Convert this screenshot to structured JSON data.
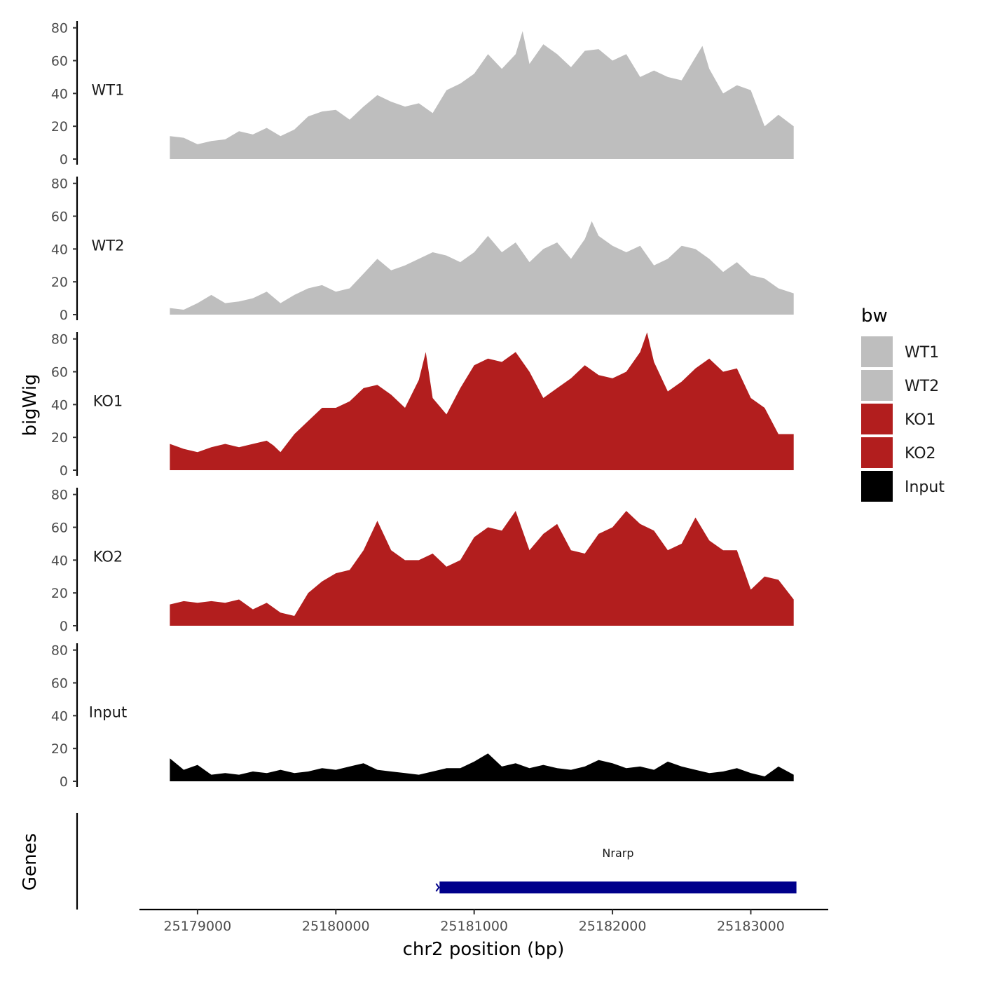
{
  "chart_data": {
    "type": "area",
    "xlabel": "chr2 position (bp)",
    "ylabel": "bigWig",
    "genes_label": "Genes",
    "xlim": [
      25178580,
      25183560
    ],
    "x_ticks": [
      25179000,
      25180000,
      25181000,
      25182000,
      25183000
    ],
    "x_tick_labels": [
      "25179000",
      "25180000",
      "25181000",
      "25182000",
      "25183000"
    ],
    "ylim": [
      0,
      85
    ],
    "y_ticks": [
      0,
      20,
      40,
      60,
      80
    ],
    "y_tick_labels": [
      "0",
      "20",
      "40",
      "60",
      "80"
    ],
    "grid": false,
    "legend": {
      "title": "bw",
      "position": "right",
      "entries": [
        {
          "label": "WT1",
          "color": "#bebebe"
        },
        {
          "label": "WT2",
          "color": "#bebebe"
        },
        {
          "label": "KO1",
          "color": "#b21e1e"
        },
        {
          "label": "KO2",
          "color": "#b21e1e"
        },
        {
          "label": "Input",
          "color": "#000000"
        }
      ]
    },
    "series": [
      {
        "name": "WT1",
        "color": "#bebebe",
        "x": [
          25178800,
          25178900,
          25179000,
          25179100,
          25179200,
          25179300,
          25179400,
          25179500,
          25179600,
          25179700,
          25179800,
          25179900,
          25180000,
          25180100,
          25180200,
          25180300,
          25180400,
          25180500,
          25180600,
          25180700,
          25180800,
          25180900,
          25181000,
          25181100,
          25181200,
          25181300,
          25181350,
          25181400,
          25181500,
          25181600,
          25181700,
          25181800,
          25181900,
          25182000,
          25182100,
          25182200,
          25182300,
          25182400,
          25182500,
          25182600,
          25182650,
          25182700,
          25182800,
          25182900,
          25183000,
          25183100,
          25183200,
          25183310
        ],
        "y": [
          14,
          13,
          9,
          11,
          12,
          17,
          15,
          19,
          14,
          18,
          26,
          29,
          30,
          24,
          32,
          39,
          35,
          32,
          34,
          28,
          42,
          46,
          52,
          64,
          55,
          64,
          78,
          58,
          70,
          64,
          56,
          66,
          67,
          60,
          64,
          50,
          54,
          50,
          48,
          62,
          69,
          55,
          40,
          45,
          42,
          20,
          27,
          20
        ]
      },
      {
        "name": "WT2",
        "color": "#bebebe",
        "x": [
          25178800,
          25178900,
          25179000,
          25179100,
          25179200,
          25179300,
          25179400,
          25179500,
          25179600,
          25179700,
          25179800,
          25179900,
          25180000,
          25180100,
          25180200,
          25180300,
          25180400,
          25180500,
          25180600,
          25180700,
          25180800,
          25180900,
          25181000,
          25181100,
          25181200,
          25181300,
          25181400,
          25181500,
          25181600,
          25181700,
          25181800,
          25181850,
          25181900,
          25182000,
          25182100,
          25182200,
          25182300,
          25182400,
          25182500,
          25182600,
          25182700,
          25182800,
          25182900,
          25183000,
          25183100,
          25183200,
          25183310
        ],
        "y": [
          4,
          3,
          7,
          12,
          7,
          8,
          10,
          14,
          7,
          12,
          16,
          18,
          14,
          16,
          25,
          34,
          27,
          30,
          34,
          38,
          36,
          32,
          38,
          48,
          38,
          44,
          32,
          40,
          44,
          34,
          46,
          57,
          48,
          42,
          38,
          42,
          30,
          34,
          42,
          40,
          34,
          26,
          32,
          24,
          22,
          16,
          13
        ]
      },
      {
        "name": "KO1",
        "color": "#b21e1e",
        "x": [
          25178800,
          25178900,
          25179000,
          25179100,
          25179200,
          25179300,
          25179400,
          25179500,
          25179550,
          25179600,
          25179700,
          25179800,
          25179900,
          25180000,
          25180100,
          25180200,
          25180300,
          25180400,
          25180500,
          25180600,
          25180650,
          25180700,
          25180800,
          25180900,
          25181000,
          25181100,
          25181200,
          25181300,
          25181400,
          25181500,
          25181600,
          25181700,
          25181800,
          25181900,
          25182000,
          25182100,
          25182200,
          25182250,
          25182300,
          25182400,
          25182500,
          25182600,
          25182700,
          25182800,
          25182900,
          25183000,
          25183100,
          25183200,
          25183310
        ],
        "y": [
          16,
          13,
          11,
          14,
          16,
          14,
          16,
          18,
          15,
          11,
          22,
          30,
          38,
          38,
          42,
          50,
          52,
          46,
          38,
          55,
          72,
          44,
          34,
          50,
          64,
          68,
          66,
          72,
          60,
          44,
          50,
          56,
          64,
          58,
          56,
          60,
          72,
          84,
          66,
          48,
          54,
          62,
          68,
          60,
          62,
          44,
          38,
          22,
          22
        ]
      },
      {
        "name": "KO2",
        "color": "#b21e1e",
        "x": [
          25178800,
          25178900,
          25179000,
          25179100,
          25179200,
          25179300,
          25179400,
          25179500,
          25179600,
          25179700,
          25179800,
          25179900,
          25180000,
          25180100,
          25180200,
          25180300,
          25180400,
          25180500,
          25180600,
          25180700,
          25180800,
          25180900,
          25181000,
          25181100,
          25181200,
          25181300,
          25181400,
          25181500,
          25181600,
          25181700,
          25181800,
          25181900,
          25182000,
          25182100,
          25182200,
          25182300,
          25182400,
          25182500,
          25182600,
          25182700,
          25182800,
          25182900,
          25183000,
          25183100,
          25183200,
          25183310
        ],
        "y": [
          13,
          15,
          14,
          15,
          14,
          16,
          10,
          14,
          8,
          6,
          20,
          27,
          32,
          34,
          46,
          64,
          46,
          40,
          40,
          44,
          36,
          40,
          54,
          60,
          58,
          70,
          46,
          56,
          62,
          46,
          44,
          56,
          60,
          70,
          62,
          58,
          46,
          50,
          66,
          52,
          46,
          46,
          22,
          30,
          28,
          16
        ]
      },
      {
        "name": "Input",
        "color": "#000000",
        "x": [
          25178800,
          25178900,
          25179000,
          25179100,
          25179200,
          25179300,
          25179400,
          25179500,
          25179600,
          25179700,
          25179800,
          25179900,
          25180000,
          25180100,
          25180200,
          25180300,
          25180400,
          25180500,
          25180600,
          25180700,
          25180800,
          25180900,
          25181000,
          25181100,
          25181200,
          25181300,
          25181400,
          25181500,
          25181600,
          25181700,
          25181800,
          25181900,
          25182000,
          25182100,
          25182200,
          25182300,
          25182400,
          25182500,
          25182600,
          25182700,
          25182800,
          25182900,
          25183000,
          25183100,
          25183200,
          25183310
        ],
        "y": [
          14,
          7,
          10,
          4,
          5,
          4,
          6,
          5,
          7,
          5,
          6,
          8,
          7,
          9,
          11,
          7,
          6,
          5,
          4,
          6,
          8,
          8,
          12,
          17,
          9,
          11,
          8,
          10,
          8,
          7,
          9,
          13,
          11,
          8,
          9,
          7,
          12,
          9,
          7,
          5,
          6,
          8,
          5,
          3,
          9,
          4
        ]
      }
    ],
    "genes": [
      {
        "name": "Nrarp",
        "start": 25180750,
        "end": 25183330,
        "strand": "-",
        "color": "#00008b"
      }
    ]
  }
}
